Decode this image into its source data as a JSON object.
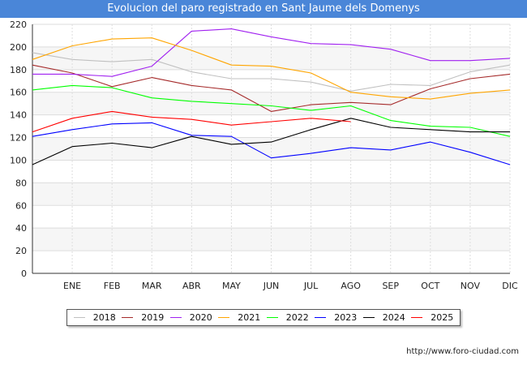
{
  "title": "Evolucion del paro registrado en Sant Jaume dels Domenys",
  "source_url": "http://www.foro-ciudad.com",
  "chart_data": {
    "type": "line",
    "title": "Evolucion del paro registrado en Sant Jaume dels Domenys",
    "xlabel": "",
    "ylabel": "",
    "ylim": [
      0,
      220
    ],
    "yticks": [
      0,
      20,
      40,
      60,
      80,
      100,
      120,
      140,
      160,
      180,
      200,
      220
    ],
    "grid": true,
    "legend_position": "bottom",
    "categories": [
      "",
      "ENE",
      "FEB",
      "MAR",
      "ABR",
      "MAY",
      "JUN",
      "JUL",
      "AGO",
      "SEP",
      "OCT",
      "NOV",
      "DIC"
    ],
    "series": [
      {
        "name": "2018",
        "color": "#c0c0c0",
        "values": [
          195,
          189,
          187,
          189,
          178,
          172,
          172,
          169,
          161,
          167,
          166,
          178,
          184
        ]
      },
      {
        "name": "2019",
        "color": "#a52a2a",
        "values": [
          184,
          177,
          165,
          173,
          166,
          162,
          143,
          149,
          151,
          149,
          163,
          172,
          176
        ]
      },
      {
        "name": "2020",
        "color": "#a020f0",
        "values": [
          176,
          176,
          174,
          183,
          214,
          216,
          209,
          203,
          202,
          198,
          188,
          188,
          190
        ]
      },
      {
        "name": "2021",
        "color": "#ffa500",
        "values": [
          189,
          201,
          207,
          208,
          197,
          184,
          183,
          177,
          160,
          156,
          154,
          159,
          162
        ]
      },
      {
        "name": "2022",
        "color": "#00ff00",
        "values": [
          162,
          166,
          164,
          155,
          152,
          150,
          148,
          144,
          148,
          135,
          130,
          129,
          121
        ]
      },
      {
        "name": "2023",
        "color": "#0000ff",
        "values": [
          121,
          127,
          132,
          133,
          122,
          121,
          102,
          106,
          111,
          109,
          116,
          107,
          96
        ]
      },
      {
        "name": "2024",
        "color": "#000000",
        "values": [
          96,
          112,
          115,
          111,
          121,
          114,
          116,
          127,
          137,
          129,
          127,
          125,
          125
        ]
      },
      {
        "name": "2025",
        "color": "#ff0000",
        "values": [
          125,
          137,
          143,
          138,
          136,
          131,
          134,
          137,
          134,
          null,
          null,
          null,
          null
        ]
      }
    ]
  }
}
